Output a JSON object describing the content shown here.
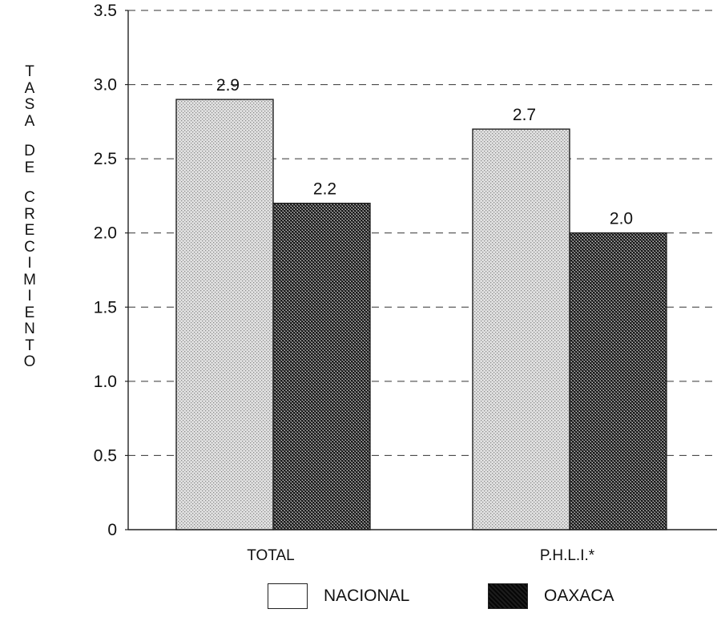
{
  "chart_data": {
    "type": "bar",
    "title": "",
    "xlabel": "",
    "ylabel": "TASA DE CRECIMIENTO",
    "ylim": [
      0,
      3.5
    ],
    "yticks": [
      "0",
      "0.5",
      "1.0",
      "1.5",
      "2.0",
      "2.5",
      "3.0",
      "3.5"
    ],
    "categories": [
      "TOTAL",
      "P.H.L.I.*"
    ],
    "series": [
      {
        "name": "NACIONAL",
        "values": [
          2.9,
          2.7
        ],
        "labels": [
          "2.9",
          "2.7"
        ],
        "pattern": "light-dots"
      },
      {
        "name": "OAXACA",
        "values": [
          2.2,
          2.0
        ],
        "labels": [
          "2.2",
          "2.0"
        ],
        "pattern": "dark-crosshatch"
      }
    ],
    "grid": true,
    "legend_position": "bottom"
  }
}
